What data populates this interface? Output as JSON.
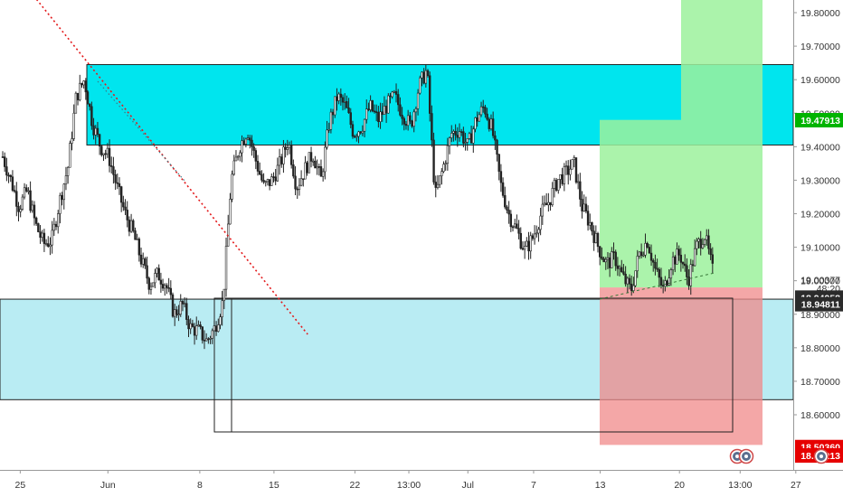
{
  "colors": {
    "background": "#ffffff",
    "candle": "#222222",
    "supply_zone": "#00e5ee",
    "demand_zone": "#b9ecf3",
    "target_zone": "#9cf19c",
    "stop_zone": "#f08a8a",
    "trendline": "#e31a1c",
    "current_price_badge": "#00b400",
    "level_badge_dark": "#2b2b2b",
    "stop_badge": "#e60000"
  },
  "chart_data": {
    "type": "candlestick",
    "symbol_context": "forex",
    "y_axis": {
      "range": [
        18.5,
        19.84
      ],
      "ticks": [
        "19.80000",
        "19.70000",
        "19.60000",
        "19.50000",
        "19.40000",
        "19.30000",
        "19.20000",
        "19.10000",
        "19.00000",
        "18.90000",
        "18.80000",
        "18.70000",
        "18.60000"
      ],
      "tick_values": [
        19.8,
        19.7,
        19.6,
        19.5,
        19.4,
        19.3,
        19.2,
        19.1,
        19.0,
        18.9,
        18.8,
        18.7,
        18.6
      ]
    },
    "x_axis": {
      "ticks": [
        "25",
        "Jun",
        "8",
        "15",
        "22",
        "13:00",
        "Jul",
        "7",
        "13",
        "20",
        "13:00",
        "27"
      ],
      "tick_positions": [
        0.024,
        0.128,
        0.237,
        0.325,
        0.421,
        0.485,
        0.555,
        0.633,
        0.712,
        0.806,
        0.878,
        0.944
      ]
    },
    "price_labels": [
      {
        "label": "19.47913",
        "value": 19.47913,
        "style": "current"
      },
      {
        "label": "19.00377",
        "value": 19.00377,
        "style": "plain"
      },
      {
        "label": "48:20",
        "value": 18.977,
        "style": "plain"
      },
      {
        "label": "18.94958",
        "value": 18.94958,
        "style": "dark"
      },
      {
        "label": "18.94811",
        "value": 18.93,
        "style": "dark"
      },
      {
        "label": "18.50360",
        "value": 18.5036,
        "style": "stop"
      },
      {
        "label": "18.50213",
        "value": 18.4786,
        "style": "stop"
      }
    ],
    "zones": [
      {
        "name": "supply",
        "price_top": 19.645,
        "price_bottom": 19.405
      },
      {
        "name": "demand",
        "price_top": 18.945,
        "price_bottom": 18.645
      }
    ],
    "trendline": {
      "from": {
        "time": 0.04,
        "price": 19.85
      },
      "to": {
        "time": 0.365,
        "price": 18.84
      }
    },
    "positions": [
      {
        "kind": "long",
        "entry": 18.98,
        "target": 19.48,
        "stop": 18.51
      },
      {
        "kind": "long",
        "entry": 18.98,
        "target": 19.99,
        "stop": 18.5
      }
    ],
    "close_series": [
      19.37,
      19.3,
      19.22,
      19.27,
      19.17,
      19.11,
      19.12,
      19.24,
      19.34,
      19.55,
      19.6,
      19.47,
      19.4,
      19.37,
      19.28,
      19.2,
      19.14,
      19.06,
      18.99,
      19.02,
      18.99,
      18.9,
      18.93,
      18.86,
      18.85,
      18.82,
      18.86,
      18.94,
      19.3,
      19.4,
      19.45,
      19.36,
      19.28,
      19.3,
      19.35,
      19.42,
      19.28,
      19.33,
      19.38,
      19.3,
      19.47,
      19.55,
      19.52,
      19.44,
      19.46,
      19.52,
      19.48,
      19.52,
      19.55,
      19.5,
      19.46,
      19.58,
      19.63,
      19.25,
      19.34,
      19.44,
      19.45,
      19.4,
      19.48,
      19.52,
      19.45,
      19.29,
      19.2,
      19.15,
      19.09,
      19.13,
      19.2,
      19.24,
      19.3,
      19.32,
      19.35,
      19.22,
      19.17,
      19.1,
      19.05,
      19.07,
      19.01,
      18.97,
      19.08,
      19.12,
      19.03,
      18.97,
      19.06,
      19.08,
      19.0,
      19.1,
      19.14,
      19.03
    ]
  }
}
